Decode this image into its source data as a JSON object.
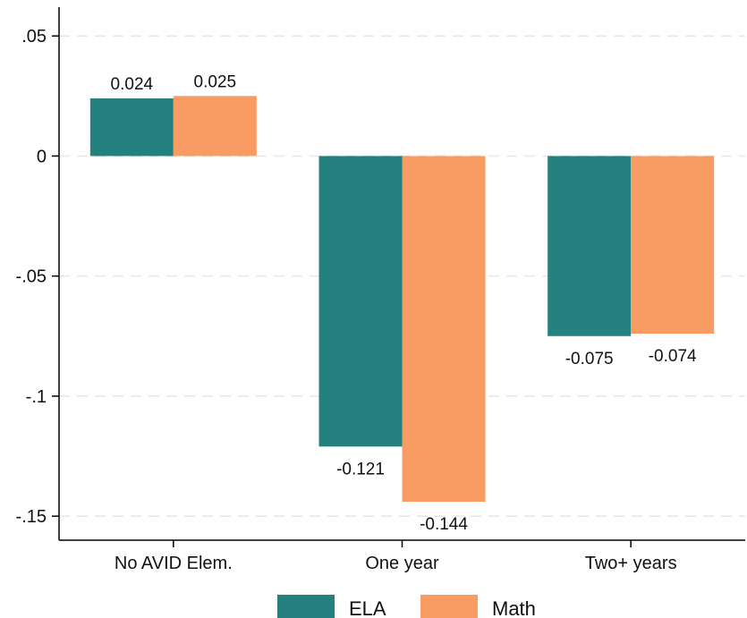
{
  "chart_data": {
    "type": "bar",
    "categories": [
      "No AVID Elem.",
      "One year",
      "Two+ years"
    ],
    "series": [
      {
        "name": "ELA",
        "color": "#24817f",
        "values": [
          0.024,
          -0.121,
          -0.075
        ],
        "labels": [
          "0.024",
          "-0.121",
          "-0.075"
        ]
      },
      {
        "name": "Math",
        "color": "#f89c64",
        "values": [
          0.025,
          -0.144,
          -0.074
        ],
        "labels": [
          "0.025",
          "-0.144",
          "-0.074"
        ]
      }
    ],
    "y_ticks": [
      0.05,
      0,
      -0.05,
      -0.1,
      -0.15
    ],
    "y_tick_labels": [
      ".05",
      "0",
      "-.05",
      "-.1",
      "-.15"
    ],
    "ylim": [
      -0.16,
      0.062
    ],
    "grid": true,
    "legend_position": "bottom"
  }
}
